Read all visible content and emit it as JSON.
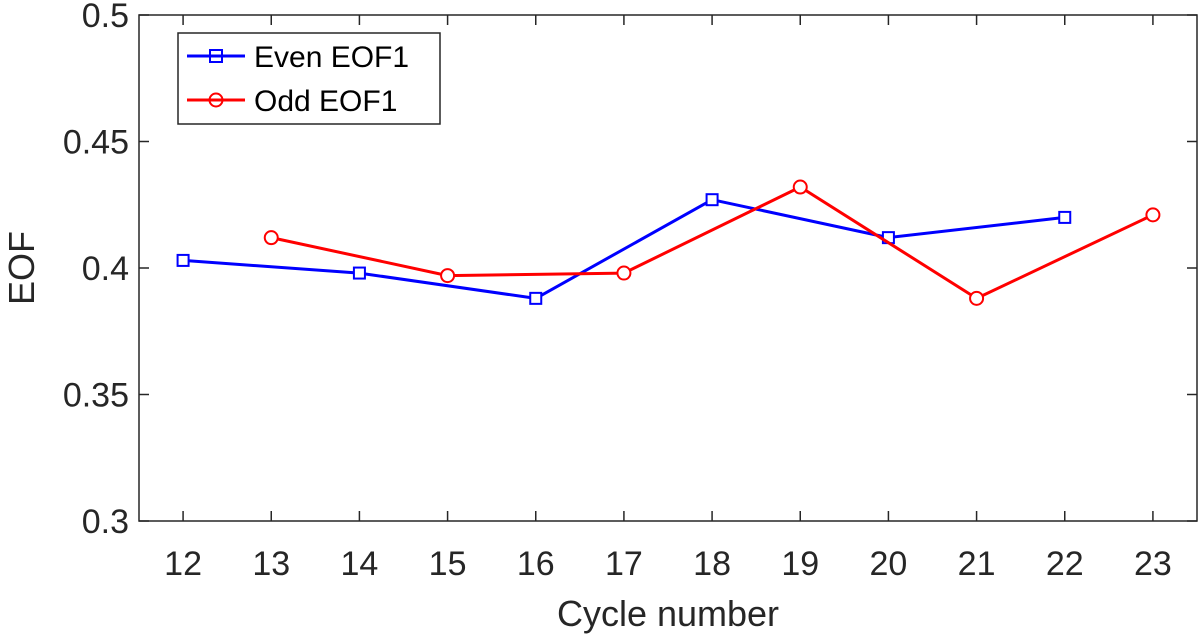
{
  "chart_data": {
    "type": "line",
    "xlabel": "Cycle number",
    "ylabel": "EOF",
    "xlim": [
      11.5,
      23.5
    ],
    "ylim": [
      0.3,
      0.5
    ],
    "xticks": [
      12,
      13,
      14,
      15,
      16,
      17,
      18,
      19,
      20,
      21,
      22,
      23
    ],
    "yticks": [
      0.3,
      0.35,
      0.4,
      0.45,
      0.5
    ],
    "ytick_labels": [
      "0.3",
      "0.35",
      "0.4",
      "0.45",
      "0.5"
    ],
    "grid": false,
    "legend_position": "top-left",
    "series": [
      {
        "name": "Even EOF1",
        "color": "#0000ff",
        "marker": "square",
        "x": [
          12,
          14,
          16,
          18,
          20,
          22
        ],
        "y": [
          0.403,
          0.398,
          0.388,
          0.427,
          0.412,
          0.42
        ]
      },
      {
        "name": "Odd EOF1",
        "color": "#ff0000",
        "marker": "circle",
        "x": [
          13,
          15,
          17,
          19,
          21,
          23
        ],
        "y": [
          0.412,
          0.397,
          0.398,
          0.432,
          0.388,
          0.421
        ]
      }
    ]
  }
}
